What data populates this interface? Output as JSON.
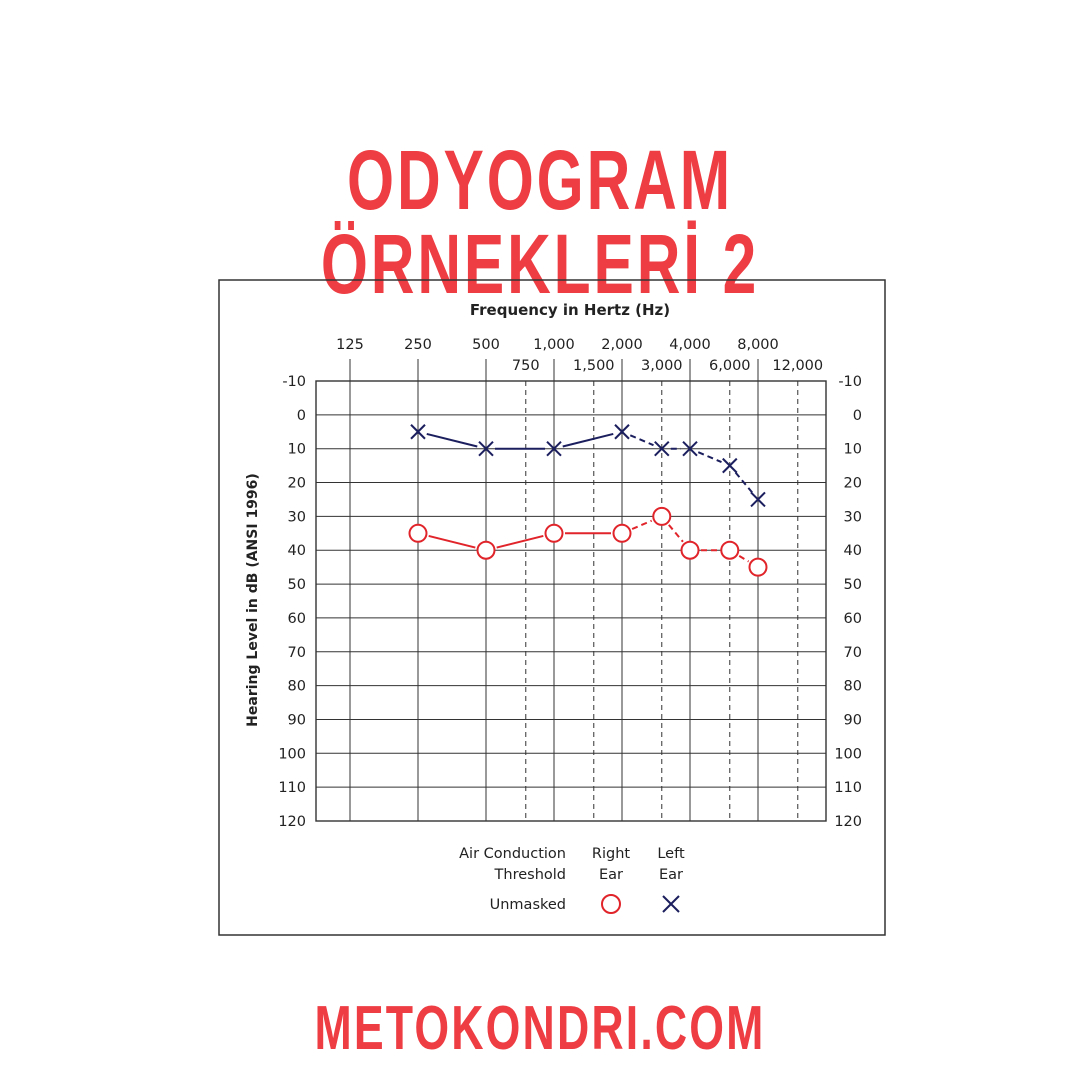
{
  "page": {
    "title": "ODYOGRAM ÖRNEKLERİ 2",
    "footer": "METOKONDRI.COM"
  },
  "colors": {
    "title": "#ee3d43",
    "right_ear": "#e0242a",
    "left_ear": "#1c1f5e",
    "grid": "#333333"
  },
  "chart_data": {
    "type": "line",
    "title": "Frequency in Hertz (Hz)",
    "ylabel": "Hearing Level in dB (ANSI 1996)",
    "x_octave_ticks": [
      "125",
      "250",
      "500",
      "1,000",
      "2,000",
      "4,000",
      "8,000"
    ],
    "x_midoctave_ticks": [
      "750",
      "1,500",
      "3,000",
      "6,000",
      "12,000"
    ],
    "x_frequencies": [
      250,
      500,
      1000,
      2000,
      3000,
      4000,
      6000,
      8000
    ],
    "y_ticks": [
      "-10",
      "0",
      "10",
      "20",
      "30",
      "40",
      "50",
      "60",
      "70",
      "80",
      "90",
      "100",
      "110",
      "120"
    ],
    "ylim": [
      -10,
      120
    ],
    "y_inverted": true,
    "grid": true,
    "series": [
      {
        "name": "Right Ear",
        "marker": "circle",
        "color": "#e0242a",
        "x": [
          250,
          500,
          1000,
          2000,
          3000,
          4000,
          6000,
          8000
        ],
        "values": [
          35,
          40,
          35,
          35,
          30,
          40,
          40,
          45
        ]
      },
      {
        "name": "Left Ear",
        "marker": "x",
        "color": "#1c1f5e",
        "x": [
          250,
          500,
          1000,
          2000,
          3000,
          4000,
          6000,
          8000
        ],
        "values": [
          5,
          10,
          10,
          5,
          10,
          10,
          15,
          25
        ]
      }
    ],
    "legend": {
      "header_line1": "Air Conduction",
      "header_line2": "Threshold",
      "right_line1": "Right",
      "right_line2": "Ear",
      "left_line1": "Left",
      "left_line2": "Ear",
      "row_label": "Unmasked"
    }
  }
}
